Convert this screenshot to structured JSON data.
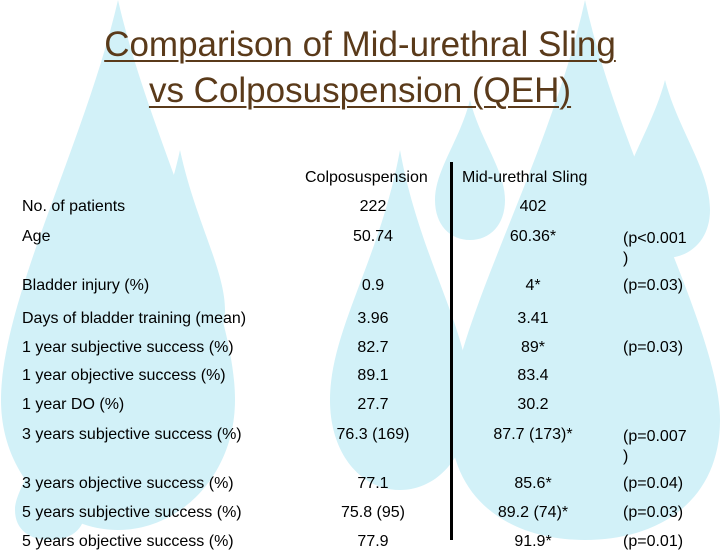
{
  "title": {
    "line1": "Comparison of Mid-urethral Sling",
    "line2": "vs Colposuspension (QEH)"
  },
  "colors": {
    "title": "#5a3a1a",
    "drops": "#d2f1f8"
  },
  "table": {
    "headers": {
      "col1": "Colposuspension",
      "col2": "Mid-urethral Sling"
    },
    "rows": [
      {
        "label": "No. of patients",
        "col1": "222",
        "col2": "402",
        "p1": "",
        "p2": ""
      },
      {
        "label": "Age",
        "col1": "50.74",
        "col2": "60.36*",
        "p1": "(p<0.001",
        "p2": ")"
      },
      {
        "label": "Bladder injury (%)",
        "col1": "0.9",
        "col2": "4*",
        "p1": "(p=0.03)",
        "p2": ""
      },
      {
        "label": "Days of bladder training (mean)",
        "col1": "3.96",
        "col2": "3.41",
        "p1": "",
        "p2": ""
      },
      {
        "label": "1 year subjective success (%)",
        "col1": "82.7",
        "col2": "89*",
        "p1": "(p=0.03)",
        "p2": ""
      },
      {
        "label": "1 year objective success (%)",
        "col1": "89.1",
        "col2": "83.4",
        "p1": "",
        "p2": ""
      },
      {
        "label": "1 year DO (%)",
        "col1": "27.7",
        "col2": "30.2",
        "p1": "",
        "p2": ""
      },
      {
        "label": "3 years subjective success (%)",
        "col1": "76.3 (169)",
        "col2": "87.7 (173)*",
        "p1": "(p=0.007",
        "p2": ")"
      },
      {
        "label": "3 years objective success (%)",
        "col1": "77.1",
        "col2": "85.6*",
        "p1": "(p=0.04)",
        "p2": ""
      },
      {
        "label": "5 years subjective success (%)",
        "col1": "75.8 (95)",
        "col2": "89.2 (74)*",
        "p1": "(p=0.03)",
        "p2": ""
      },
      {
        "label": "5 years objective success (%)",
        "col1": "77.9",
        "col2": "91.9*",
        "p1": "(p=0.01)",
        "p2": ""
      }
    ]
  }
}
